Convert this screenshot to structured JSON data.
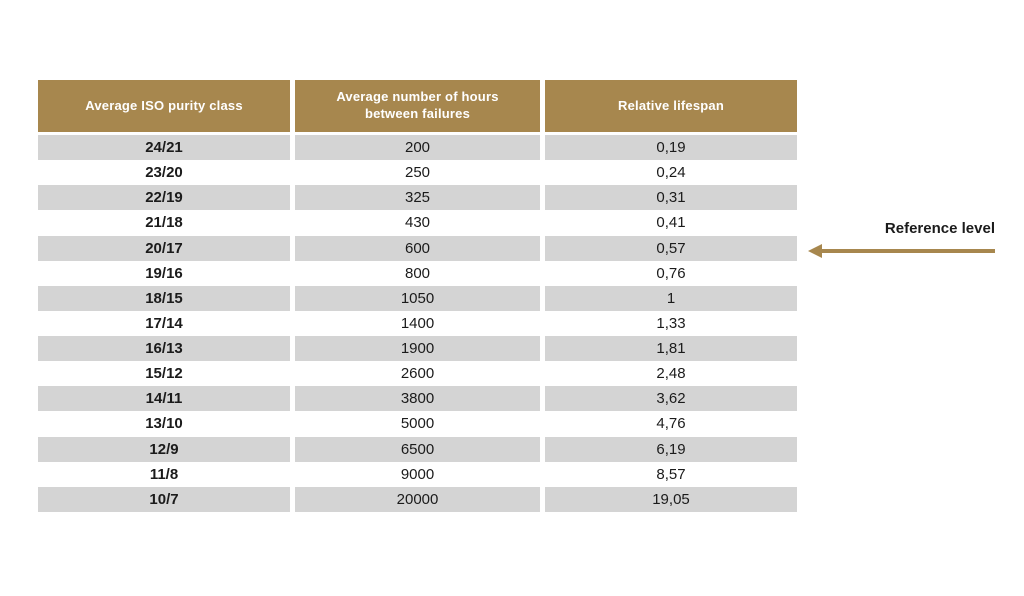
{
  "chart_data": {
    "type": "table",
    "title": "",
    "columns": [
      "Average ISO purity class",
      "Average number of hours between failures",
      "Relative lifespan"
    ],
    "rows": [
      [
        "24/21",
        "200",
        "0,19"
      ],
      [
        "23/20",
        "250",
        "0,24"
      ],
      [
        "22/19",
        "325",
        "0,31"
      ],
      [
        "21/18",
        "430",
        "0,41"
      ],
      [
        "20/17",
        "600",
        "0,57"
      ],
      [
        "19/16",
        "800",
        "0,76"
      ],
      [
        "18/15",
        "1050",
        "1"
      ],
      [
        "17/14",
        "1400",
        "1,33"
      ],
      [
        "16/13",
        "1900",
        "1,81"
      ],
      [
        "15/12",
        "2600",
        "2,48"
      ],
      [
        "14/11",
        "3800",
        "3,62"
      ],
      [
        "13/10",
        "5000",
        "4,76"
      ],
      [
        "12/9",
        "6500",
        "6,19"
      ],
      [
        "11/8",
        "9000",
        "8,57"
      ],
      [
        "10/7",
        "20000",
        "19,05"
      ]
    ],
    "layout_hints": {
      "row_striping": "starts gray, alternates gray/white",
      "header_style": "gold background, white centered text",
      "annotation_target_row": "20/17"
    }
  },
  "annotation": {
    "label": "Reference level",
    "arrow_direction": "left",
    "points_to_row": "20/17"
  },
  "colors": {
    "header_bg": "#A7874E",
    "row_alt_bg": "#D4D4D4",
    "row_bg": "#FFFFFF",
    "arrow": "#A7874E",
    "header_text": "#FFFFFF",
    "body_text": "#1B1B1B",
    "page_bg": "#FFFFFF"
  }
}
